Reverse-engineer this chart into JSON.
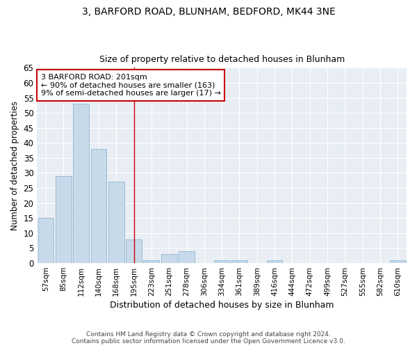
{
  "title1": "3, BARFORD ROAD, BLUNHAM, BEDFORD, MK44 3NE",
  "title2": "Size of property relative to detached houses in Blunham",
  "xlabel": "Distribution of detached houses by size in Blunham",
  "ylabel": "Number of detached properties",
  "bar_color": "#c8daea",
  "bar_edge_color": "#9bbcd4",
  "categories": [
    "57sqm",
    "85sqm",
    "112sqm",
    "140sqm",
    "168sqm",
    "195sqm",
    "223sqm",
    "251sqm",
    "278sqm",
    "306sqm",
    "334sqm",
    "361sqm",
    "389sqm",
    "416sqm",
    "444sqm",
    "472sqm",
    "499sqm",
    "527sqm",
    "555sqm",
    "582sqm",
    "610sqm"
  ],
  "values": [
    15,
    29,
    53,
    38,
    27,
    8,
    1,
    3,
    4,
    0,
    1,
    1,
    0,
    1,
    0,
    0,
    0,
    0,
    0,
    0,
    1
  ],
  "ylim": [
    0,
    65
  ],
  "yticks": [
    0,
    5,
    10,
    15,
    20,
    25,
    30,
    35,
    40,
    45,
    50,
    55,
    60,
    65
  ],
  "vline_x": 5.0,
  "vline_color": "#cc0000",
  "annotation_title": "3 BARFORD ROAD: 201sqm",
  "annotation_line1": "← 90% of detached houses are smaller (163)",
  "annotation_line2": "9% of semi-detached houses are larger (17) →",
  "annotation_box_color": "#ffffff",
  "annotation_border_color": "#cc0000",
  "footer1": "Contains HM Land Registry data © Crown copyright and database right 2024.",
  "footer2": "Contains public sector information licensed under the Open Government Licence v3.0.",
  "bg_color": "#ffffff",
  "plot_bg_color": "#e8eef4",
  "grid_color": "#ffffff"
}
